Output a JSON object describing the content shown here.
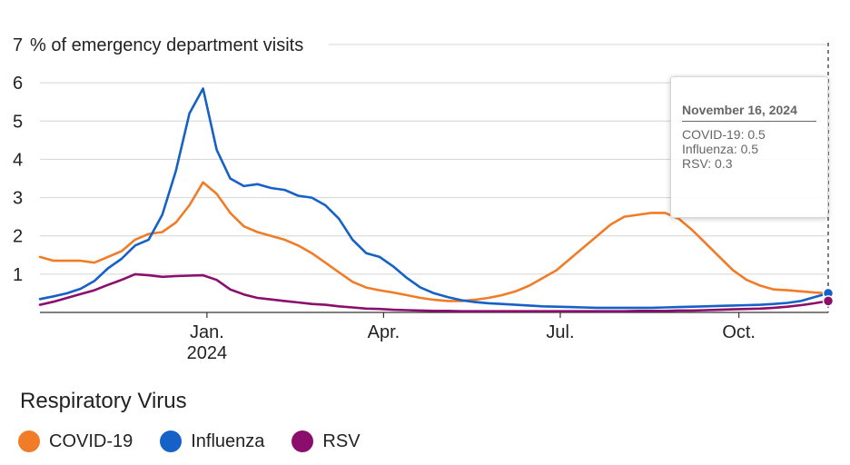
{
  "chart_data": {
    "type": "line",
    "ylabel": "% of emergency department visits",
    "ylim": [
      0,
      7
    ],
    "yticks": [
      1,
      2,
      3,
      4,
      5,
      6,
      7
    ],
    "x_start": "2023-10-07",
    "x_end": "2024-11-16",
    "xticks": [
      {
        "date": "2024-01-01",
        "label": "Jan.",
        "sublabel": "2024"
      },
      {
        "date": "2024-04-01",
        "label": "Apr.",
        "sublabel": ""
      },
      {
        "date": "2024-07-01",
        "label": "Jul.",
        "sublabel": ""
      },
      {
        "date": "2024-10-01",
        "label": "Oct.",
        "sublabel": ""
      }
    ],
    "grid": true,
    "series": [
      {
        "name": "COVID-19",
        "color": "#f07c27",
        "points": [
          [
            "2023-10-07",
            1.45
          ],
          [
            "2023-10-14",
            1.35
          ],
          [
            "2023-10-21",
            1.35
          ],
          [
            "2023-10-28",
            1.35
          ],
          [
            "2023-11-04",
            1.3
          ],
          [
            "2023-11-11",
            1.45
          ],
          [
            "2023-11-18",
            1.6
          ],
          [
            "2023-11-25",
            1.9
          ],
          [
            "2023-12-02",
            2.05
          ],
          [
            "2023-12-09",
            2.1
          ],
          [
            "2023-12-16",
            2.35
          ],
          [
            "2023-12-23",
            2.8
          ],
          [
            "2023-12-30",
            3.4
          ],
          [
            "2024-01-06",
            3.1
          ],
          [
            "2024-01-13",
            2.6
          ],
          [
            "2024-01-20",
            2.25
          ],
          [
            "2024-01-27",
            2.1
          ],
          [
            "2024-02-03",
            2.0
          ],
          [
            "2024-02-10",
            1.9
          ],
          [
            "2024-02-17",
            1.75
          ],
          [
            "2024-02-24",
            1.55
          ],
          [
            "2024-03-02",
            1.3
          ],
          [
            "2024-03-09",
            1.05
          ],
          [
            "2024-03-16",
            0.8
          ],
          [
            "2024-03-23",
            0.65
          ],
          [
            "2024-03-30",
            0.58
          ],
          [
            "2024-04-06",
            0.52
          ],
          [
            "2024-04-13",
            0.45
          ],
          [
            "2024-04-20",
            0.38
          ],
          [
            "2024-04-27",
            0.33
          ],
          [
            "2024-05-04",
            0.3
          ],
          [
            "2024-05-11",
            0.3
          ],
          [
            "2024-05-18",
            0.33
          ],
          [
            "2024-05-25",
            0.38
          ],
          [
            "2024-06-01",
            0.45
          ],
          [
            "2024-06-08",
            0.55
          ],
          [
            "2024-06-15",
            0.7
          ],
          [
            "2024-06-22",
            0.9
          ],
          [
            "2024-06-29",
            1.1
          ],
          [
            "2024-07-06",
            1.4
          ],
          [
            "2024-07-13",
            1.7
          ],
          [
            "2024-07-20",
            2.0
          ],
          [
            "2024-07-27",
            2.3
          ],
          [
            "2024-08-03",
            2.5
          ],
          [
            "2024-08-10",
            2.55
          ],
          [
            "2024-08-17",
            2.6
          ],
          [
            "2024-08-24",
            2.6
          ],
          [
            "2024-08-31",
            2.45
          ],
          [
            "2024-09-07",
            2.15
          ],
          [
            "2024-09-14",
            1.8
          ],
          [
            "2024-09-21",
            1.45
          ],
          [
            "2024-09-28",
            1.1
          ],
          [
            "2024-10-05",
            0.85
          ],
          [
            "2024-10-12",
            0.7
          ],
          [
            "2024-10-19",
            0.6
          ],
          [
            "2024-10-26",
            0.58
          ],
          [
            "2024-11-02",
            0.55
          ],
          [
            "2024-11-09",
            0.52
          ],
          [
            "2024-11-16",
            0.5
          ]
        ]
      },
      {
        "name": "Influenza",
        "color": "#1561c8",
        "points": [
          [
            "2023-10-07",
            0.35
          ],
          [
            "2023-10-14",
            0.42
          ],
          [
            "2023-10-21",
            0.5
          ],
          [
            "2023-10-28",
            0.62
          ],
          [
            "2023-11-04",
            0.82
          ],
          [
            "2023-11-11",
            1.15
          ],
          [
            "2023-11-18",
            1.4
          ],
          [
            "2023-11-25",
            1.75
          ],
          [
            "2023-12-02",
            1.9
          ],
          [
            "2023-12-09",
            2.55
          ],
          [
            "2023-12-16",
            3.7
          ],
          [
            "2023-12-23",
            5.2
          ],
          [
            "2023-12-30",
            5.85
          ],
          [
            "2024-01-06",
            4.25
          ],
          [
            "2024-01-13",
            3.5
          ],
          [
            "2024-01-20",
            3.3
          ],
          [
            "2024-01-27",
            3.35
          ],
          [
            "2024-02-03",
            3.25
          ],
          [
            "2024-02-10",
            3.2
          ],
          [
            "2024-02-17",
            3.05
          ],
          [
            "2024-02-24",
            3.0
          ],
          [
            "2024-03-02",
            2.8
          ],
          [
            "2024-03-09",
            2.45
          ],
          [
            "2024-03-16",
            1.9
          ],
          [
            "2024-03-23",
            1.55
          ],
          [
            "2024-03-30",
            1.45
          ],
          [
            "2024-04-06",
            1.2
          ],
          [
            "2024-04-13",
            0.9
          ],
          [
            "2024-04-20",
            0.65
          ],
          [
            "2024-04-27",
            0.5
          ],
          [
            "2024-05-04",
            0.4
          ],
          [
            "2024-05-11",
            0.32
          ],
          [
            "2024-05-18",
            0.27
          ],
          [
            "2024-05-25",
            0.24
          ],
          [
            "2024-06-01",
            0.22
          ],
          [
            "2024-06-08",
            0.2
          ],
          [
            "2024-06-15",
            0.18
          ],
          [
            "2024-06-22",
            0.16
          ],
          [
            "2024-06-29",
            0.15
          ],
          [
            "2024-07-06",
            0.14
          ],
          [
            "2024-07-13",
            0.13
          ],
          [
            "2024-07-20",
            0.12
          ],
          [
            "2024-07-27",
            0.12
          ],
          [
            "2024-08-03",
            0.12
          ],
          [
            "2024-08-10",
            0.12
          ],
          [
            "2024-08-17",
            0.12
          ],
          [
            "2024-08-24",
            0.13
          ],
          [
            "2024-08-31",
            0.14
          ],
          [
            "2024-09-07",
            0.15
          ],
          [
            "2024-09-14",
            0.16
          ],
          [
            "2024-09-21",
            0.17
          ],
          [
            "2024-09-28",
            0.18
          ],
          [
            "2024-10-05",
            0.19
          ],
          [
            "2024-10-12",
            0.2
          ],
          [
            "2024-10-19",
            0.22
          ],
          [
            "2024-10-26",
            0.25
          ],
          [
            "2024-11-02",
            0.3
          ],
          [
            "2024-11-09",
            0.4
          ],
          [
            "2024-11-16",
            0.5
          ]
        ]
      },
      {
        "name": "RSV",
        "color": "#8b0d6c",
        "points": [
          [
            "2023-10-07",
            0.2
          ],
          [
            "2023-10-14",
            0.28
          ],
          [
            "2023-10-21",
            0.38
          ],
          [
            "2023-10-28",
            0.48
          ],
          [
            "2023-11-04",
            0.58
          ],
          [
            "2023-11-11",
            0.72
          ],
          [
            "2023-11-18",
            0.85
          ],
          [
            "2023-11-25",
            1.0
          ],
          [
            "2023-12-02",
            0.97
          ],
          [
            "2023-12-09",
            0.93
          ],
          [
            "2023-12-16",
            0.95
          ],
          [
            "2023-12-23",
            0.96
          ],
          [
            "2023-12-30",
            0.97
          ],
          [
            "2024-01-06",
            0.85
          ],
          [
            "2024-01-13",
            0.6
          ],
          [
            "2024-01-20",
            0.47
          ],
          [
            "2024-01-27",
            0.38
          ],
          [
            "2024-02-03",
            0.34
          ],
          [
            "2024-02-10",
            0.3
          ],
          [
            "2024-02-17",
            0.26
          ],
          [
            "2024-02-24",
            0.22
          ],
          [
            "2024-03-02",
            0.2
          ],
          [
            "2024-03-09",
            0.16
          ],
          [
            "2024-03-16",
            0.13
          ],
          [
            "2024-03-23",
            0.1
          ],
          [
            "2024-03-30",
            0.09
          ],
          [
            "2024-04-06",
            0.07
          ],
          [
            "2024-04-13",
            0.06
          ],
          [
            "2024-04-20",
            0.05
          ],
          [
            "2024-04-27",
            0.04
          ],
          [
            "2024-05-04",
            0.04
          ],
          [
            "2024-05-11",
            0.03
          ],
          [
            "2024-05-18",
            0.03
          ],
          [
            "2024-05-25",
            0.03
          ],
          [
            "2024-06-01",
            0.03
          ],
          [
            "2024-06-08",
            0.03
          ],
          [
            "2024-06-15",
            0.03
          ],
          [
            "2024-06-22",
            0.03
          ],
          [
            "2024-06-29",
            0.03
          ],
          [
            "2024-07-06",
            0.03
          ],
          [
            "2024-07-13",
            0.03
          ],
          [
            "2024-07-20",
            0.03
          ],
          [
            "2024-07-27",
            0.03
          ],
          [
            "2024-08-03",
            0.03
          ],
          [
            "2024-08-10",
            0.04
          ],
          [
            "2024-08-17",
            0.04
          ],
          [
            "2024-08-24",
            0.04
          ],
          [
            "2024-08-31",
            0.05
          ],
          [
            "2024-09-07",
            0.05
          ],
          [
            "2024-09-14",
            0.06
          ],
          [
            "2024-09-21",
            0.07
          ],
          [
            "2024-09-28",
            0.08
          ],
          [
            "2024-10-05",
            0.09
          ],
          [
            "2024-10-12",
            0.1
          ],
          [
            "2024-10-19",
            0.12
          ],
          [
            "2024-10-26",
            0.15
          ],
          [
            "2024-11-02",
            0.19
          ],
          [
            "2024-11-09",
            0.24
          ],
          [
            "2024-11-16",
            0.3
          ]
        ]
      }
    ]
  },
  "legend": {
    "title": "Respiratory Virus",
    "items": [
      {
        "label": "COVID-19",
        "color": "#f07c27"
      },
      {
        "label": "Influenza",
        "color": "#1561c8"
      },
      {
        "label": "RSV",
        "color": "#8b0d6c"
      }
    ]
  },
  "tooltip": {
    "date": "November 16, 2024",
    "rows": [
      "COVID-19: 0.5",
      "Influenza: 0.5",
      "RSV: 0.3"
    ]
  }
}
